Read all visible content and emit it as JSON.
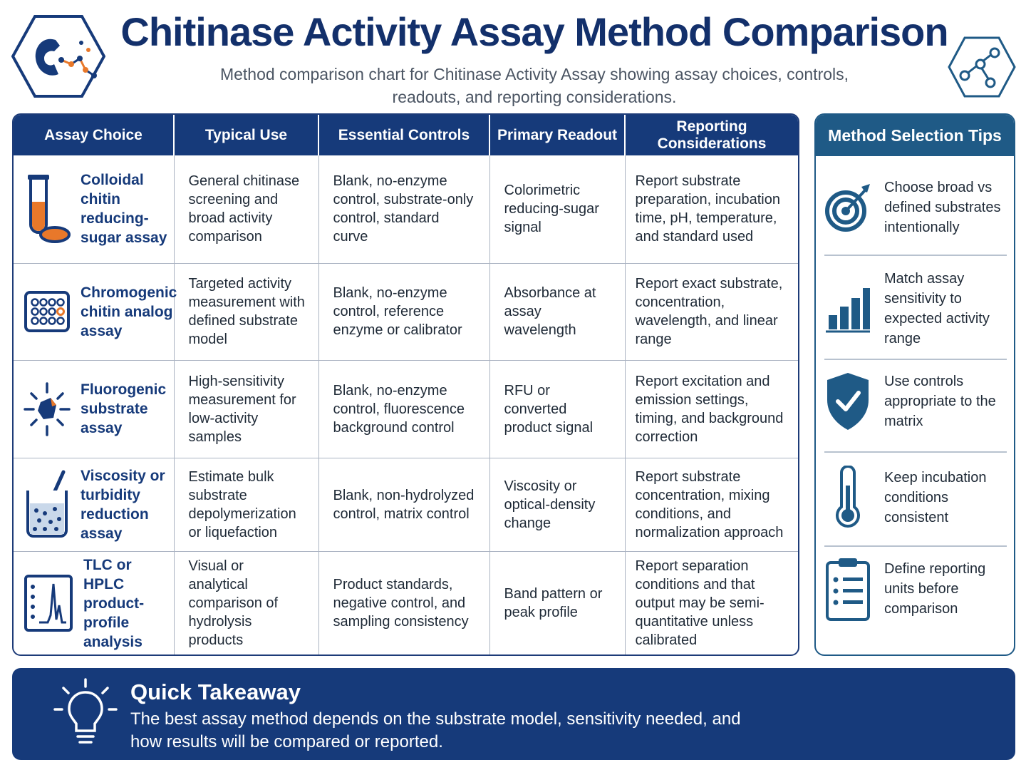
{
  "title": "Chitinase Activity Assay Method Comparison",
  "subtitle": "Method comparison chart for Chitinase Activity Assay showing assay choices, controls, readouts, and reporting considerations.",
  "table": {
    "headers": [
      "Assay Choice",
      "Typical Use",
      "Essential Controls",
      "Primary Readout",
      "Reporting Considerations"
    ],
    "rows": [
      {
        "icon": "test-tube-icon",
        "choice": "Colloidal chitin reducing-sugar assay",
        "use": "General chitinase screening and broad activity comparison",
        "controls": "Blank, no-enzyme control, substrate-only control, standard curve",
        "readout": "Colorimetric reducing-sugar signal",
        "reporting": "Report substrate preparation, incubation time, pH, temperature, and standard used"
      },
      {
        "icon": "microplate-icon",
        "choice": "Chromogenic chitin analog assay",
        "use": "Targeted activity measurement with defined substrate model",
        "controls": "Blank, no-enzyme control, reference enzyme or calibrator",
        "readout": "Absorbance at assay wavelength",
        "reporting": "Report exact substrate, concentration, wavelength, and linear range"
      },
      {
        "icon": "fluorescence-icon",
        "choice": "Fluorogenic substrate assay",
        "use": "High-sensitivity measurement for low-activity samples",
        "controls": "Blank, no-enzyme control, fluorescence background control",
        "readout": "RFU or converted product signal",
        "reporting": "Report excitation and emission settings, timing, and background correction"
      },
      {
        "icon": "beaker-icon",
        "choice": "Viscosity or turbidity reduction assay",
        "use": "Estimate bulk substrate depolymerization or liquefaction",
        "controls": "Blank, non-hydrolyzed control, matrix control",
        "readout": "Viscosity or optical-density change",
        "reporting": "Report substrate concentration, mixing conditions, and normalization approach"
      },
      {
        "icon": "chromatogram-icon",
        "choice": "TLC or HPLC product-profile analysis",
        "use": "Visual or analytical comparison of hydrolysis products",
        "controls": "Product standards, negative control, and sampling consistency",
        "readout": "Band pattern or peak profile",
        "reporting": "Report separation conditions and that output may be semi-quantitative unless calibrated"
      }
    ]
  },
  "tips": {
    "title": "Method Selection Tips",
    "items": [
      {
        "icon": "target-icon",
        "text": "Choose broad vs defined substrates intentionally"
      },
      {
        "icon": "bar-chart-icon",
        "text": "Match assay sensitivity to expected activity range"
      },
      {
        "icon": "shield-check-icon",
        "text": "Use controls appropriate to the matrix"
      },
      {
        "icon": "thermometer-icon",
        "text": "Keep incubation conditions consistent"
      },
      {
        "icon": "clipboard-icon",
        "text": "Define reporting units before comparison"
      }
    ]
  },
  "takeaway": {
    "title": "Quick Takeaway",
    "text": "The best assay method depends on the substrate model, sensitivity needed, and how results will be compared or reported."
  },
  "colors": {
    "navy": "#163a7a",
    "teal": "#1f5a86",
    "orange": "#e8782a"
  }
}
